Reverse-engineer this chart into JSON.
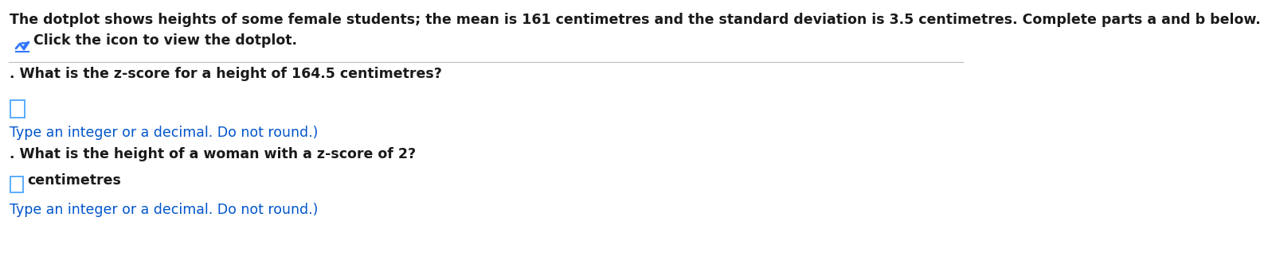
{
  "bg_color": "#ffffff",
  "line1": "The dotplot shows heights of some female students; the mean is 161 centimetres and the standard deviation is 3.5 centimetres. Complete parts a and b below.",
  "line2_icon_text": "Click the icon to view the dotplot.",
  "part_a_label": ". What is the z-score for a height of 164.5 centimetres?",
  "part_a_hint": "Type an integer or a decimal. Do not round.)",
  "part_b_label": ". What is the height of a woman with a z-score of 2?",
  "part_b_unit": "centimetres",
  "part_b_hint": "Type an integer or a decimal. Do not round.)",
  "text_color_black": "#1a1a1a",
  "text_color_blue": "#0055cc",
  "font_size": 12.5,
  "box_edge_color": "#4da6ff",
  "separator_color": "#bbbbbb",
  "icon_color": "#3377ff"
}
